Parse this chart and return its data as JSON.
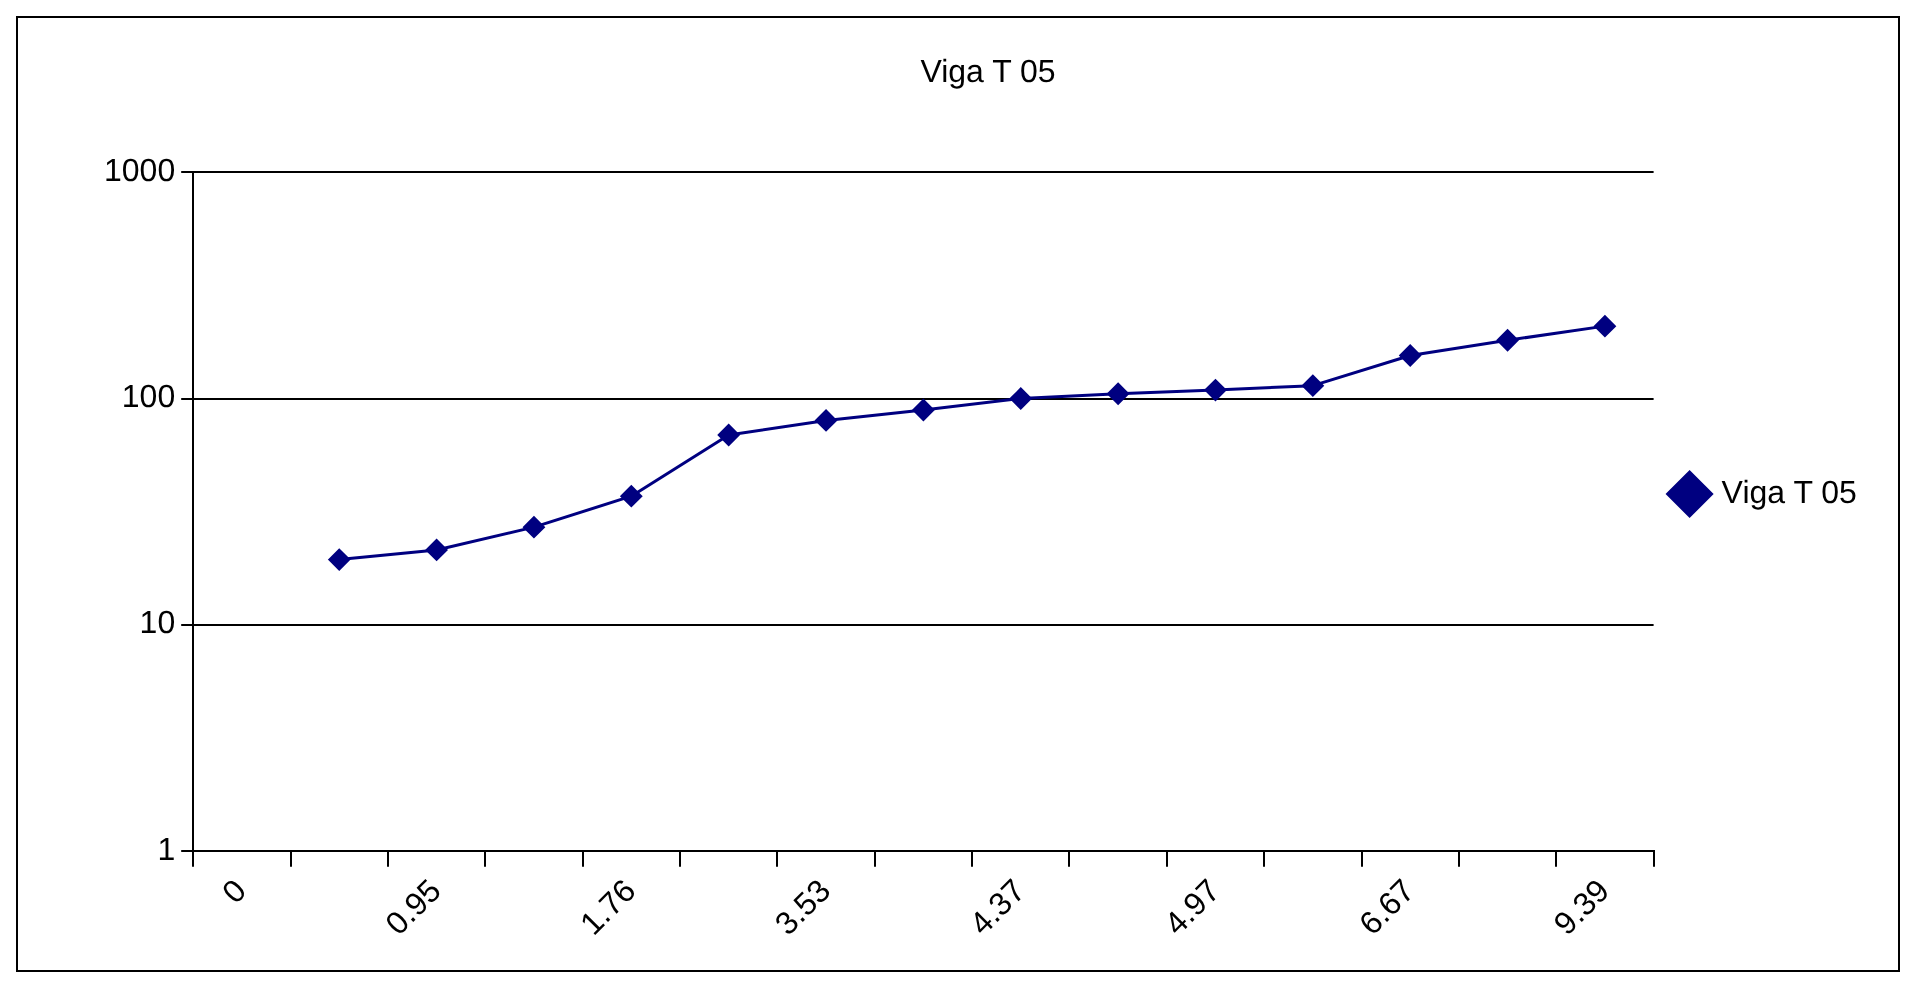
{
  "chart_data": {
    "type": "line",
    "title": "Viga T 05",
    "categories": [
      "0",
      null,
      "0.95",
      null,
      "1.76",
      null,
      "3.53",
      null,
      "4.37",
      null,
      "4.97",
      null,
      "6.67",
      null,
      "9.39"
    ],
    "series": [
      {
        "name": "Viga T 05",
        "color": "#000080",
        "values": [
          null,
          19.4,
          21.4,
          27,
          37,
          69,
          80,
          89,
          100,
          105,
          109,
          114,
          155,
          181,
          209
        ]
      }
    ],
    "ylim": [
      1,
      1000
    ],
    "yticks": [
      1,
      10,
      100,
      1000
    ],
    "log": "y",
    "grid": "y",
    "legend": "right",
    "marker": "diamond",
    "line_style": "solid"
  }
}
